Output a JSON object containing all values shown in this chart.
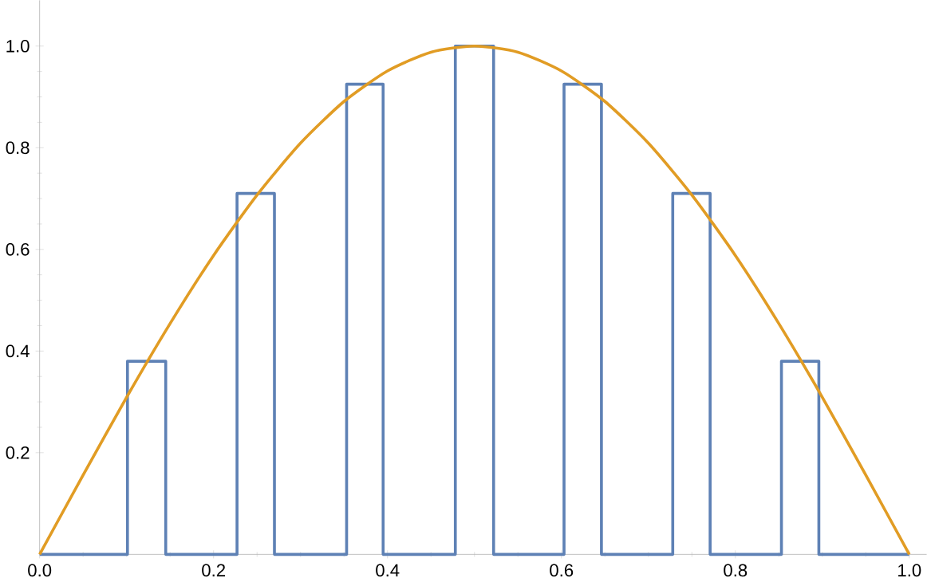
{
  "chart_data": {
    "type": "line",
    "xlim": [
      0,
      1.02
    ],
    "ylim": [
      0,
      1.09
    ],
    "xticks": [
      {
        "value": 0,
        "label": "0.0"
      },
      0.2,
      0.4,
      0.6,
      0.8,
      {
        "value": 1,
        "label": "1.0"
      }
    ],
    "yticks": [
      0.2,
      0.4,
      0.6,
      0.8,
      {
        "value": 1,
        "label": "1.0"
      }
    ],
    "grid": false,
    "marker": "none",
    "line_style": "solid",
    "series": [
      {
        "type": "step",
        "color": "#5e81b5",
        "x": [
          0,
          0.101,
          0.101,
          0.145,
          0.145,
          0.227,
          0.227,
          0.27,
          0.27,
          0.353,
          0.353,
          0.395,
          0.395,
          0.478,
          0.478,
          0.522,
          0.522,
          0.603,
          0.603,
          0.646,
          0.646,
          0.728,
          0.728,
          0.771,
          0.771,
          0.853,
          0.853,
          0.896,
          0.896,
          1
        ],
        "values": [
          0,
          0,
          0.38,
          0.38,
          0,
          0,
          0.71,
          0.71,
          0,
          0,
          0.925,
          0.925,
          0,
          0,
          1.0,
          1.0,
          0,
          0,
          0.925,
          0.925,
          0,
          0,
          0.71,
          0.71,
          0,
          0,
          0.38,
          0.38,
          0,
          0
        ]
      },
      {
        "color": "#e19c24",
        "x": [
          0,
          0.05,
          0.1,
          0.15,
          0.2,
          0.25,
          0.3,
          0.35,
          0.4,
          0.45,
          0.5,
          0.55,
          0.6,
          0.65,
          0.7,
          0.75,
          0.8,
          0.85,
          0.9,
          0.95,
          1
        ],
        "values": [
          0,
          0.156,
          0.309,
          0.454,
          0.588,
          0.707,
          0.809,
          0.891,
          0.951,
          0.988,
          1.0,
          0.988,
          0.951,
          0.891,
          0.809,
          0.707,
          0.588,
          0.454,
          0.309,
          0.156,
          0
        ]
      }
    ]
  }
}
